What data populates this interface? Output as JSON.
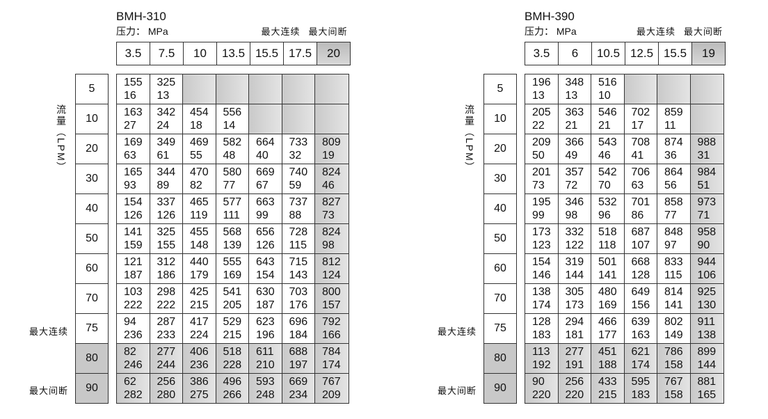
{
  "side_labels": {
    "flow": "流量（LPM）",
    "max_continuous": "最大连续",
    "max_intermittent": "最大间断"
  },
  "tables": [
    {
      "model": "BMH-310",
      "pressure_label": "压力： MPa",
      "max_continuous": "最大连续",
      "max_intermittent": "最大间断",
      "pressures": [
        "3.5",
        "7.5",
        "10",
        "13.5",
        "15.5",
        "17.5",
        "20"
      ],
      "flows": [
        "5",
        "10",
        "20",
        "30",
        "40",
        "50",
        "60",
        "70",
        "75",
        "80",
        "90"
      ],
      "rows": [
        [
          [
            "155",
            "16"
          ],
          [
            "325",
            "13"
          ],
          null,
          null,
          null,
          null,
          null
        ],
        [
          [
            "163",
            "27"
          ],
          [
            "342",
            "24"
          ],
          [
            "454",
            "18"
          ],
          [
            "556",
            "14"
          ],
          null,
          null,
          null
        ],
        [
          [
            "169",
            "63"
          ],
          [
            "349",
            "61"
          ],
          [
            "469",
            "55"
          ],
          [
            "582",
            "48"
          ],
          [
            "664",
            "40"
          ],
          [
            "733",
            "32"
          ],
          [
            "809",
            "19"
          ]
        ],
        [
          [
            "165",
            "93"
          ],
          [
            "344",
            "89"
          ],
          [
            "470",
            "82"
          ],
          [
            "580",
            "77"
          ],
          [
            "669",
            "67"
          ],
          [
            "740",
            "59"
          ],
          [
            "824",
            "46"
          ]
        ],
        [
          [
            "154",
            "126"
          ],
          [
            "337",
            "126"
          ],
          [
            "465",
            "119"
          ],
          [
            "577",
            "111"
          ],
          [
            "663",
            "99"
          ],
          [
            "737",
            "88"
          ],
          [
            "827",
            "73"
          ]
        ],
        [
          [
            "141",
            "159"
          ],
          [
            "325",
            "155"
          ],
          [
            "455",
            "148"
          ],
          [
            "568",
            "139"
          ],
          [
            "656",
            "126"
          ],
          [
            "728",
            "115"
          ],
          [
            "824",
            "98"
          ]
        ],
        [
          [
            "121",
            "187"
          ],
          [
            "312",
            "186"
          ],
          [
            "440",
            "179"
          ],
          [
            "555",
            "169"
          ],
          [
            "643",
            "154"
          ],
          [
            "715",
            "143"
          ],
          [
            "812",
            "124"
          ]
        ],
        [
          [
            "103",
            "222"
          ],
          [
            "298",
            "222"
          ],
          [
            "425",
            "215"
          ],
          [
            "541",
            "205"
          ],
          [
            "630",
            "187"
          ],
          [
            "703",
            "176"
          ],
          [
            "800",
            "157"
          ]
        ],
        [
          [
            "94",
            "236"
          ],
          [
            "287",
            "233"
          ],
          [
            "417",
            "224"
          ],
          [
            "529",
            "215"
          ],
          [
            "623",
            "196"
          ],
          [
            "696",
            "184"
          ],
          [
            "792",
            "166"
          ]
        ],
        [
          [
            "82",
            "246"
          ],
          [
            "277",
            "244"
          ],
          [
            "406",
            "236"
          ],
          [
            "518",
            "228"
          ],
          [
            "611",
            "210"
          ],
          [
            "688",
            "197"
          ],
          [
            "784",
            "174"
          ]
        ],
        [
          [
            "62",
            "282"
          ],
          [
            "256",
            "280"
          ],
          [
            "386",
            "275"
          ],
          [
            "496",
            "266"
          ],
          [
            "593",
            "248"
          ],
          [
            "669",
            "234"
          ],
          [
            "767",
            "209"
          ]
        ]
      ]
    },
    {
      "model": "BMH-390",
      "pressure_label": "压力： MPa",
      "max_continuous": "最大连续",
      "max_intermittent": "最大间断",
      "pressures": [
        "3.5",
        "6",
        "10.5",
        "12.5",
        "15.5",
        "19"
      ],
      "flows": [
        "5",
        "10",
        "20",
        "30",
        "40",
        "50",
        "60",
        "70",
        "75",
        "80",
        "90"
      ],
      "rows": [
        [
          [
            "196",
            "13"
          ],
          [
            "348",
            "13"
          ],
          [
            "516",
            "10"
          ],
          null,
          null,
          null
        ],
        [
          [
            "205",
            "22"
          ],
          [
            "363",
            "21"
          ],
          [
            "546",
            "21"
          ],
          [
            "702",
            "17"
          ],
          [
            "859",
            "11"
          ],
          null
        ],
        [
          [
            "209",
            "50"
          ],
          [
            "366",
            "49"
          ],
          [
            "543",
            "46"
          ],
          [
            "708",
            "41"
          ],
          [
            "874",
            "36"
          ],
          [
            "988",
            "31"
          ]
        ],
        [
          [
            "201",
            "73"
          ],
          [
            "357",
            "72"
          ],
          [
            "542",
            "70"
          ],
          [
            "706",
            "63"
          ],
          [
            "864",
            "56"
          ],
          [
            "984",
            "51"
          ]
        ],
        [
          [
            "195",
            "99"
          ],
          [
            "346",
            "98"
          ],
          [
            "532",
            "96"
          ],
          [
            "701",
            "86"
          ],
          [
            "858",
            "77"
          ],
          [
            "973",
            "71"
          ]
        ],
        [
          [
            "173",
            "123"
          ],
          [
            "332",
            "122"
          ],
          [
            "518",
            "118"
          ],
          [
            "687",
            "107"
          ],
          [
            "848",
            "97"
          ],
          [
            "958",
            "90"
          ]
        ],
        [
          [
            "154",
            "146"
          ],
          [
            "319",
            "144"
          ],
          [
            "501",
            "141"
          ],
          [
            "668",
            "128"
          ],
          [
            "833",
            "115"
          ],
          [
            "944",
            "106"
          ]
        ],
        [
          [
            "138",
            "174"
          ],
          [
            "305",
            "173"
          ],
          [
            "480",
            "169"
          ],
          [
            "649",
            "156"
          ],
          [
            "814",
            "141"
          ],
          [
            "925",
            "130"
          ]
        ],
        [
          [
            "128",
            "183"
          ],
          [
            "294",
            "181"
          ],
          [
            "466",
            "177"
          ],
          [
            "639",
            "163"
          ],
          [
            "802",
            "149"
          ],
          [
            "911",
            "138"
          ]
        ],
        [
          [
            "113",
            "192"
          ],
          [
            "277",
            "191"
          ],
          [
            "451",
            "188"
          ],
          [
            "621",
            "174"
          ],
          [
            "786",
            "158"
          ],
          [
            "899",
            "144"
          ]
        ],
        [
          [
            "90",
            "220"
          ],
          [
            "256",
            "220"
          ],
          [
            "433",
            "215"
          ],
          [
            "595",
            "183"
          ],
          [
            "767",
            "158"
          ],
          [
            "881",
            "165"
          ]
        ]
      ]
    }
  ]
}
